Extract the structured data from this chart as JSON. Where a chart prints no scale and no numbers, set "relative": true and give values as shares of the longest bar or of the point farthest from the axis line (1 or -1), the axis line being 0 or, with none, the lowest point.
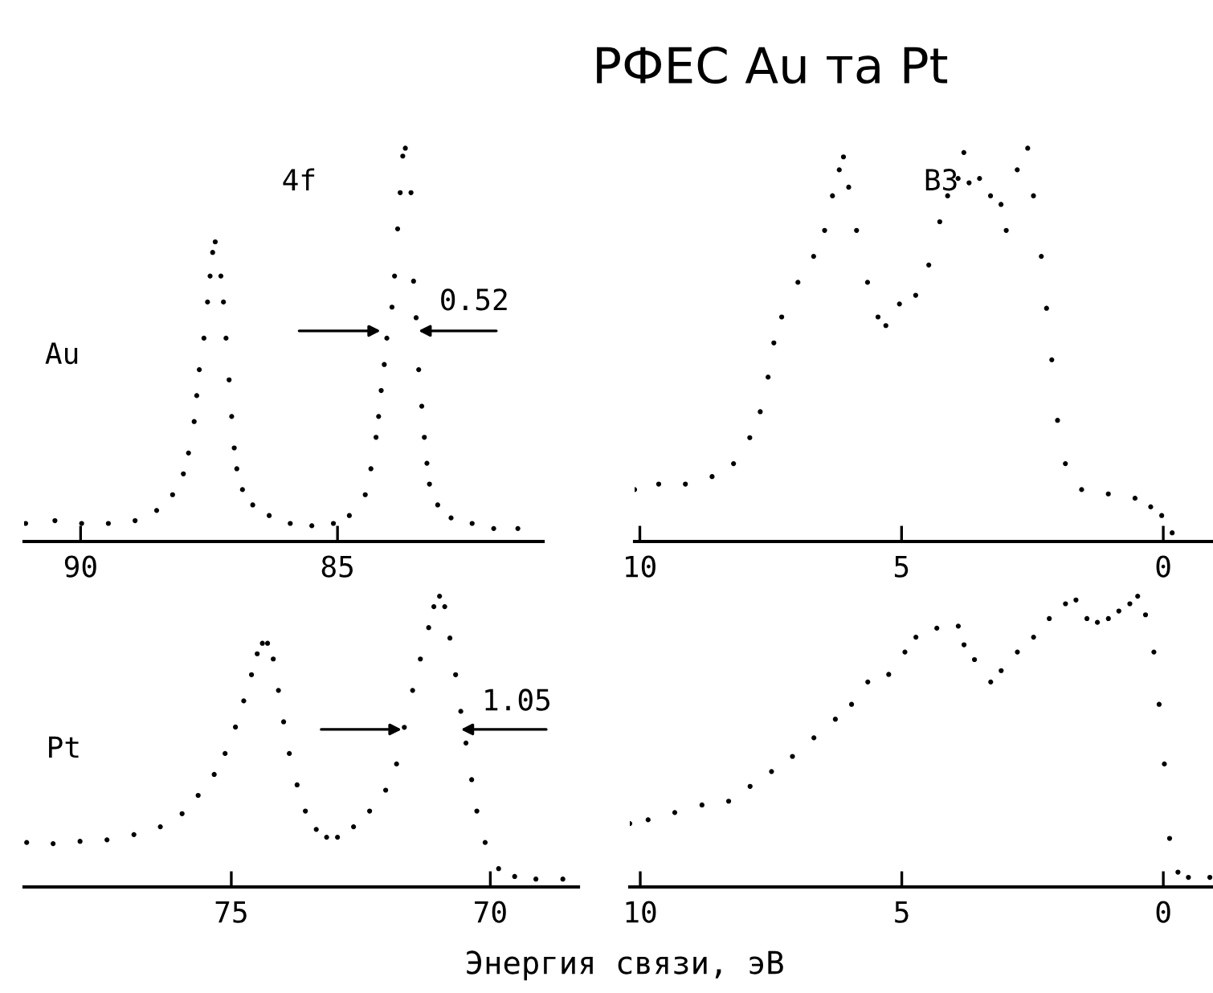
{
  "chart_data": [
    {
      "type": "scatter",
      "title": "4f",
      "ylabel": "Au",
      "relative": true,
      "marker": "circle",
      "xlim": [
        91.1,
        81.0
      ],
      "xticks": [
        90,
        85
      ],
      "annotations": [
        "РФЕС Au та Pt",
        "0.52"
      ],
      "series": [
        {
          "color": "#000000",
          "x": [
            91.07,
            90.5,
            89.98,
            89.46,
            88.94,
            88.52,
            88.21,
            88.0,
            87.9,
            87.79,
            87.74,
            87.69,
            87.6,
            87.53,
            87.48,
            87.43,
            87.38,
            87.27,
            87.22,
            87.17,
            87.11,
            87.06,
            87.01,
            86.96,
            86.85,
            86.65,
            86.33,
            85.92,
            85.5,
            85.08,
            84.77,
            84.46,
            84.35,
            84.25,
            84.2,
            84.15,
            84.09,
            84.04,
            83.94,
            83.89,
            83.83,
            83.78,
            83.73,
            83.68,
            83.57,
            83.52,
            83.47,
            83.42,
            83.36,
            83.31,
            83.26,
            83.21,
            83.05,
            82.79,
            82.38,
            81.96,
            81.49
          ],
          "values": [
            0.046,
            0.053,
            0.046,
            0.046,
            0.053,
            0.079,
            0.119,
            0.172,
            0.225,
            0.305,
            0.371,
            0.437,
            0.517,
            0.609,
            0.675,
            0.735,
            0.762,
            0.675,
            0.609,
            0.517,
            0.411,
            0.318,
            0.238,
            0.185,
            0.132,
            0.093,
            0.066,
            0.046,
            0.04,
            0.046,
            0.066,
            0.119,
            0.185,
            0.265,
            0.318,
            0.384,
            0.45,
            0.517,
            0.596,
            0.675,
            0.795,
            0.887,
            0.98,
            1.0,
            0.887,
            0.662,
            0.569,
            0.437,
            0.344,
            0.265,
            0.199,
            0.146,
            0.093,
            0.06,
            0.046,
            0.033,
            0.033
          ]
        }
      ]
    },
    {
      "type": "scatter",
      "title": "ВЗ",
      "relative": true,
      "marker": "circle",
      "xlim": [
        10.1,
        -0.95
      ],
      "xticks": [
        10,
        5,
        0
      ],
      "series": [
        {
          "color": "#000000",
          "x": [
            10.1,
            9.64,
            9.13,
            8.62,
            8.21,
            7.9,
            7.7,
            7.55,
            7.44,
            7.29,
            6.98,
            6.68,
            6.47,
            6.32,
            6.19,
            6.11,
            6.01,
            5.86,
            5.65,
            5.45,
            5.3,
            5.04,
            4.73,
            4.48,
            4.27,
            4.12,
            3.92,
            3.81,
            3.71,
            3.51,
            3.3,
            3.1,
            3.0,
            2.79,
            2.59,
            2.48,
            2.33,
            2.23,
            2.13,
            2.02,
            1.87,
            1.56,
            1.05,
            0.54,
            0.24,
            0.03,
            -0.17
          ],
          "values": [
            0.132,
            0.146,
            0.146,
            0.165,
            0.198,
            0.264,
            0.33,
            0.418,
            0.505,
            0.571,
            0.659,
            0.725,
            0.791,
            0.879,
            0.945,
            0.978,
            0.901,
            0.791,
            0.659,
            0.571,
            0.549,
            0.604,
            0.626,
            0.703,
            0.813,
            0.879,
            0.923,
            0.989,
            0.912,
            0.923,
            0.879,
            0.857,
            0.791,
            0.945,
            1.0,
            0.879,
            0.725,
            0.593,
            0.462,
            0.308,
            0.198,
            0.132,
            0.121,
            0.11,
            0.088,
            0.066,
            0.022
          ]
        }
      ]
    },
    {
      "type": "scatter",
      "ylabel": "Pt",
      "xlabel": "Энергия связи, эВ",
      "relative": true,
      "marker": "circle",
      "xlim": [
        79.0,
        68.3
      ],
      "xticks": [
        75,
        70
      ],
      "annotations": [
        "1.05"
      ],
      "series": [
        {
          "color": "#000000",
          "x": [
            78.95,
            78.44,
            77.92,
            77.4,
            76.88,
            76.37,
            75.95,
            75.64,
            75.33,
            75.12,
            74.92,
            74.76,
            74.61,
            74.5,
            74.4,
            74.3,
            74.19,
            74.09,
            73.99,
            73.88,
            73.73,
            73.57,
            73.36,
            73.16,
            72.95,
            72.64,
            72.33,
            72.02,
            71.81,
            71.66,
            71.5,
            71.35,
            71.19,
            71.09,
            70.98,
            70.88,
            70.78,
            70.67,
            70.57,
            70.47,
            70.36,
            70.26,
            70.1,
            69.84,
            69.53,
            69.12,
            68.6
          ],
          "values": [
            0.153,
            0.149,
            0.157,
            0.162,
            0.18,
            0.207,
            0.252,
            0.315,
            0.387,
            0.459,
            0.55,
            0.64,
            0.73,
            0.802,
            0.838,
            0.838,
            0.784,
            0.676,
            0.568,
            0.459,
            0.351,
            0.261,
            0.198,
            0.171,
            0.171,
            0.207,
            0.261,
            0.333,
            0.423,
            0.549,
            0.676,
            0.784,
            0.892,
            0.964,
            1.0,
            0.964,
            0.856,
            0.73,
            0.604,
            0.495,
            0.369,
            0.261,
            0.153,
            0.063,
            0.036,
            0.027,
            0.027
          ]
        }
      ]
    },
    {
      "type": "scatter",
      "relative": true,
      "marker": "circle",
      "xlim": [
        10.2,
        -0.95
      ],
      "xticks": [
        10,
        5,
        0
      ],
      "series": [
        {
          "color": "#000000",
          "x": [
            10.2,
            9.85,
            9.34,
            8.82,
            8.31,
            7.9,
            7.49,
            7.09,
            6.68,
            6.27,
            5.96,
            5.65,
            5.25,
            4.94,
            4.73,
            4.33,
            3.92,
            3.81,
            3.61,
            3.3,
            3.1,
            2.79,
            2.48,
            2.18,
            1.87,
            1.67,
            1.46,
            1.26,
            1.05,
            0.85,
            0.64,
            0.49,
            0.34,
            0.18,
            0.08,
            -0.02,
            -0.12,
            -0.28,
            -0.48,
            -0.89
          ],
          "values": [
            0.218,
            0.231,
            0.256,
            0.282,
            0.295,
            0.346,
            0.397,
            0.449,
            0.513,
            0.577,
            0.628,
            0.705,
            0.731,
            0.808,
            0.859,
            0.89,
            0.897,
            0.833,
            0.782,
            0.705,
            0.744,
            0.808,
            0.859,
            0.923,
            0.974,
            0.987,
            0.923,
            0.91,
            0.923,
            0.949,
            0.974,
            1.0,
            0.936,
            0.808,
            0.628,
            0.423,
            0.167,
            0.051,
            0.033,
            0.033
          ]
        }
      ]
    }
  ]
}
